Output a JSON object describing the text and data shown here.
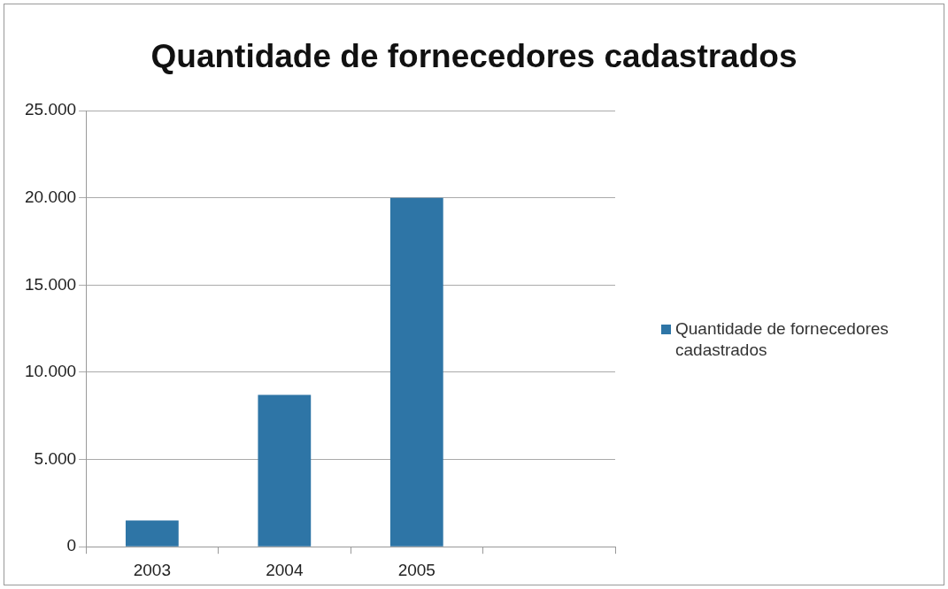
{
  "chart_data": {
    "type": "bar",
    "title": "Quantidade de fornecedores cadastrados",
    "categories": [
      "2003",
      "2004",
      "2005",
      null
    ],
    "series": [
      {
        "name": "Quantidade de fornecedores cadastrados",
        "color": "#2e75a6",
        "values": [
          1500,
          8700,
          20000,
          null
        ]
      }
    ],
    "ylim": [
      0,
      25000
    ],
    "yticks": [
      {
        "value": 0,
        "label": "0"
      },
      {
        "value": 5000,
        "label": "5.000"
      },
      {
        "value": 10000,
        "label": "10.000"
      },
      {
        "value": 15000,
        "label": "15.000"
      },
      {
        "value": 20000,
        "label": "20.000"
      },
      {
        "value": 25000,
        "label": "25.000"
      }
    ],
    "grid": "y",
    "legend": "right"
  }
}
